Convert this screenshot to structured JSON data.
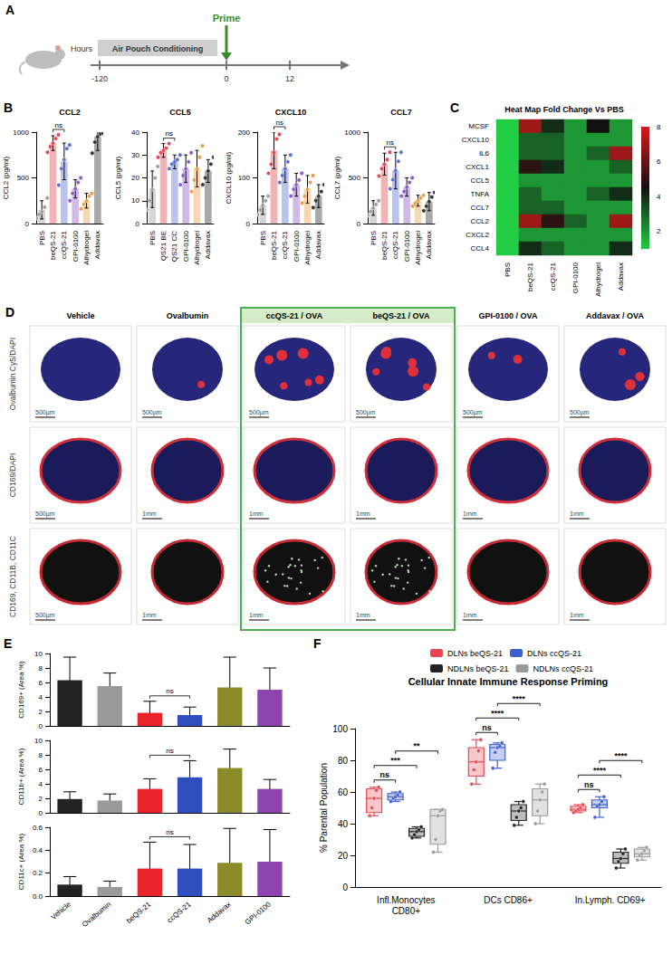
{
  "timeline": {
    "panel": "A",
    "axis_label": "Hours",
    "phase": "Air Pouch Conditioning",
    "event": "Prime",
    "ticks": [
      -120,
      0,
      12
    ]
  },
  "chart_data": [
    {
      "panel": "B",
      "type": "bar",
      "title": "CCL2",
      "y_label": "CCL2 (pg/ml)",
      "categories": [
        "PBS",
        "beQS-21",
        "ccQS-21",
        "GPI-0100",
        "Alhydrogel",
        "Addavax"
      ],
      "values": [
        150,
        880,
        680,
        380,
        250,
        950
      ],
      "errors": [
        100,
        80,
        200,
        100,
        80,
        150
      ],
      "points": [
        [
          60,
          100,
          130,
          180,
          280
        ],
        [
          780,
          840,
          880,
          930,
          970
        ],
        [
          420,
          600,
          700,
          820,
          860
        ],
        [
          250,
          330,
          380,
          450,
          500
        ],
        [
          160,
          210,
          250,
          300,
          330
        ],
        [
          770,
          890,
          950,
          980,
          990
        ]
      ],
      "colors": [
        "#9e9e9e",
        "#e8474f",
        "#5a6fd6",
        "#8e5cc9",
        "#e6a04a",
        "#333333"
      ],
      "ylim": [
        0,
        1000
      ],
      "yticks": [
        0,
        500,
        1000
      ],
      "annotations": [
        {
          "from": 1,
          "to": 2,
          "text": "ns"
        }
      ]
    },
    {
      "type": "bar",
      "title": "CCL5",
      "y_label": "CCL5 (pg/ml)",
      "categories": [
        "PBS",
        "QS21 BE",
        "QS21 CC",
        "GPI-0100",
        "Alhydrogel",
        "Addavax"
      ],
      "values": [
        15,
        32,
        27,
        24,
        24,
        23
      ],
      "errors": [
        8,
        3,
        3,
        6,
        8,
        5
      ],
      "points": [
        [
          6,
          10,
          15,
          20,
          25
        ],
        [
          29,
          31,
          32,
          33,
          35
        ],
        [
          24,
          26,
          27,
          28,
          30
        ],
        [
          17,
          21,
          24,
          27,
          31
        ],
        [
          14,
          19,
          24,
          29,
          34
        ],
        [
          17,
          20,
          23,
          26,
          29
        ]
      ],
      "colors": [
        "#9e9e9e",
        "#e8474f",
        "#5a6fd6",
        "#8e5cc9",
        "#e6a04a",
        "#333333"
      ],
      "ylim": [
        0,
        40
      ],
      "yticks": [
        0,
        10,
        20,
        30,
        40
      ],
      "annotations": [
        {
          "from": 1,
          "to": 2,
          "text": "ns"
        }
      ]
    },
    {
      "type": "bar",
      "title": "CXCL10",
      "y_label": "CXCL10 (pg/ml)",
      "categories": [
        "PBS",
        "beQS-21",
        "ccQS-21",
        "GPI-0100",
        "Alhydrogel",
        "Addavax"
      ],
      "values": [
        40,
        160,
        120,
        85,
        75,
        60
      ],
      "errors": [
        20,
        40,
        30,
        25,
        30,
        25
      ],
      "points": [
        [
          20,
          30,
          40,
          50,
          60
        ],
        [
          110,
          130,
          155,
          185,
          195
        ],
        [
          90,
          105,
          120,
          135,
          150
        ],
        [
          60,
          75,
          85,
          95,
          110
        ],
        [
          45,
          60,
          75,
          90,
          105
        ],
        [
          35,
          50,
          60,
          70,
          85
        ]
      ],
      "colors": [
        "#9e9e9e",
        "#e8474f",
        "#5a6fd6",
        "#8e5cc9",
        "#e6a04a",
        "#333333"
      ],
      "ylim": [
        0,
        200
      ],
      "yticks": [
        0,
        100,
        200
      ],
      "annotations": [
        {
          "from": 1,
          "to": 2,
          "text": "ns"
        }
      ]
    },
    {
      "type": "bar",
      "title": "CCL7",
      "y_label": "CCL7 (pg/ml)",
      "categories": [
        "PBS",
        "beQS-21",
        "ccQS-21",
        "GPI-0100",
        "Alhydrogel",
        "Addavax"
      ],
      "values": [
        170,
        650,
        580,
        400,
        250,
        240
      ],
      "errors": [
        80,
        120,
        200,
        100,
        60,
        100
      ],
      "points": [
        [
          90,
          130,
          170,
          210,
          250
        ],
        [
          520,
          600,
          650,
          700,
          780
        ],
        [
          380,
          480,
          580,
          680,
          780
        ],
        [
          300,
          350,
          400,
          450,
          500
        ],
        [
          190,
          220,
          250,
          280,
          310
        ],
        [
          140,
          190,
          240,
          290,
          340
        ]
      ],
      "colors": [
        "#9e9e9e",
        "#e8474f",
        "#5a6fd6",
        "#8e5cc9",
        "#e6a04a",
        "#333333"
      ],
      "ylim": [
        0,
        1000
      ],
      "yticks": [
        0,
        500,
        1000
      ],
      "annotations": [
        {
          "from": 1,
          "to": 2,
          "text": "ns"
        }
      ]
    },
    {
      "panel": "C",
      "type": "heatmap",
      "title": "Heat Map Fold Change Vs PBS",
      "x_categories": [
        "PBS",
        "beQS-21",
        "ccQS-21",
        "GPI-0100",
        "Alhydrogel",
        "Addavax"
      ],
      "y_categories": [
        "MCSF",
        "CXCL10",
        "IL6",
        "CXCL1",
        "CCL5",
        "TNFA",
        "CCL7",
        "CCL2",
        "CXCL2",
        "CCL4"
      ],
      "cells": [
        [
          1,
          7,
          4,
          2,
          4.5,
          2
        ],
        [
          1,
          3,
          3,
          2,
          2,
          2
        ],
        [
          1,
          3,
          3,
          2,
          3,
          7
        ],
        [
          1,
          5,
          4,
          2,
          2,
          3
        ],
        [
          1,
          2,
          2,
          2,
          2,
          2
        ],
        [
          1,
          3,
          2,
          2,
          3,
          4
        ],
        [
          1,
          3,
          3,
          2,
          2,
          2
        ],
        [
          1,
          7,
          5,
          3,
          2,
          7
        ],
        [
          1,
          2,
          2,
          2,
          2,
          2
        ],
        [
          1,
          4,
          3,
          2,
          2,
          4
        ]
      ],
      "colorbar": {
        "range": [
          1,
          8
        ],
        "ticks": [
          2,
          4,
          6,
          8
        ],
        "colors": [
          "#22cc44",
          "#111111",
          "#d7191c"
        ]
      }
    },
    {
      "panel": "E",
      "type": "bar",
      "y_label": "CD169+ (Area %)",
      "categories": [
        "Vehicle",
        "Ovalbumin",
        "beQS-21",
        "ccQS-21",
        "Addavax",
        "GPI-0100"
      ],
      "values": [
        6.3,
        5.5,
        1.8,
        1.5,
        5.3,
        5.0
      ],
      "errors": [
        3.2,
        1.8,
        1.6,
        1.1,
        4.2,
        3.0
      ],
      "colors": [
        "#222222",
        "#9a9a9a",
        "#e8242b",
        "#2f4fbf",
        "#8b8b2a",
        "#8e44ad"
      ],
      "ylim": [
        0,
        10
      ],
      "yticks": [
        0,
        2,
        4,
        6,
        8,
        10
      ],
      "tick_labels": "y",
      "annotations": [
        {
          "from": 2,
          "to": 3,
          "text": "ns"
        }
      ]
    },
    {
      "type": "bar",
      "y_label": "CD11b+ (Area %)",
      "categories": [
        "Vehicle",
        "Ovalbumin",
        "beQS-21",
        "ccQS-21",
        "Addavax",
        "GPI-0100"
      ],
      "values": [
        1.9,
        1.7,
        3.3,
        4.9,
        6.2,
        3.3
      ],
      "errors": [
        1.0,
        0.9,
        1.4,
        2.3,
        2.6,
        1.3
      ],
      "colors": [
        "#222222",
        "#9a9a9a",
        "#e8242b",
        "#2f4fbf",
        "#8b8b2a",
        "#8e44ad"
      ],
      "ylim": [
        0,
        10
      ],
      "yticks": [
        0,
        2,
        4,
        6,
        8,
        10
      ],
      "tick_labels": "y",
      "annotations": [
        {
          "from": 2,
          "to": 3,
          "text": "ns"
        }
      ]
    },
    {
      "type": "bar",
      "y_label": "CD11c+ (Area %)",
      "categories": [
        "Vehicle",
        "Ovalbumin",
        "beQS-21",
        "ccQS-21",
        "Addavax",
        "GPI-0100"
      ],
      "values": [
        0.1,
        0.08,
        0.24,
        0.24,
        0.29,
        0.3
      ],
      "errors": [
        0.07,
        0.05,
        0.23,
        0.21,
        0.3,
        0.28
      ],
      "colors": [
        "#222222",
        "#9a9a9a",
        "#e8242b",
        "#2f4fbf",
        "#8b8b2a",
        "#8e44ad"
      ],
      "ylim": [
        0,
        0.6
      ],
      "yticks": [
        {
          "value": 0,
          "label": "0.0"
        },
        0.2,
        0.4,
        0.6
      ],
      "annotations": [
        {
          "from": 2,
          "to": 3,
          "text": "ns"
        }
      ]
    },
    {
      "panel": "F",
      "type": "box",
      "title": "Cellular Innate Immune Response Priming",
      "y_label": "% Parental Population",
      "categories": [
        "Infl.Monocytes CD80+",
        "DCs CD86+",
        "In.Lymph. CD69+"
      ],
      "series": [
        {
          "name": "DLNs beQS-21",
          "color": "#e8474f",
          "values": [
            [
              45,
              47,
              56,
              62,
              63
            ],
            [
              65,
              70,
              79,
              88,
              93
            ],
            [
              47,
              48,
              49,
              51,
              52
            ]
          ],
          "points": [
            [
              45,
              50,
              56,
              61,
              63
            ],
            [
              65,
              74,
              79,
              86,
              93
            ],
            [
              47,
              48,
              49,
              50,
              52
            ]
          ]
        },
        {
          "name": "DLNs ccQS-21",
          "color": "#3f5fd0",
          "values": [
            [
              54,
              55,
              57,
              59,
              60
            ],
            [
              75,
              80,
              88,
              90,
              91
            ],
            [
              44,
              50,
              52,
              55,
              57
            ]
          ],
          "points": [
            [
              54,
              56,
              57,
              58,
              60
            ],
            [
              75,
              85,
              88,
              89,
              91
            ],
            [
              44,
              51,
              52,
              54,
              57
            ]
          ]
        },
        {
          "name": "NDLNs beQS-21",
          "color": "#222222",
          "values": [
            [
              31,
              32,
              35,
              37,
              38
            ],
            [
              39,
              42,
              48,
              52,
              54
            ],
            [
              12,
              15,
              18,
              22,
              24
            ]
          ],
          "points": [
            [
              31,
              33,
              35,
              36,
              38
            ],
            [
              39,
              44,
              48,
              50,
              54
            ],
            [
              12,
              16,
              18,
              21,
              24
            ]
          ]
        },
        {
          "name": "NDLNs ccQS-21",
          "color": "#9a9a9a",
          "values": [
            [
              22,
              27,
              45,
              49,
              49
            ],
            [
              40,
              45,
              55,
              62,
              65
            ],
            [
              17,
              19,
              21,
              24,
              25
            ]
          ],
          "points": [
            [
              22,
              30,
              45,
              48,
              49
            ],
            [
              40,
              48,
              55,
              60,
              65
            ],
            [
              17,
              20,
              21,
              23,
              25
            ]
          ]
        }
      ],
      "ylim": [
        0,
        100
      ],
      "yticks": [
        0,
        20,
        40,
        60,
        80,
        100
      ],
      "legend": "top",
      "annotations": [
        {
          "category": 0,
          "from": 0,
          "to": 1,
          "text": "ns"
        },
        {
          "category": 0,
          "from": 0,
          "to": 2,
          "text": "***"
        },
        {
          "category": 0,
          "from": 1,
          "to": 3,
          "text": "**"
        },
        {
          "category": 1,
          "from": 0,
          "to": 1,
          "text": "ns"
        },
        {
          "category": 1,
          "from": 0,
          "to": 2,
          "text": "****"
        },
        {
          "category": 1,
          "from": 1,
          "to": 3,
          "text": "****"
        },
        {
          "category": 2,
          "from": 0,
          "to": 1,
          "text": "ns"
        },
        {
          "category": 2,
          "from": 0,
          "to": 2,
          "text": "****"
        },
        {
          "category": 2,
          "from": 1,
          "to": 3,
          "text": "****"
        }
      ]
    }
  ],
  "images": {
    "panel": "D",
    "columns": [
      "Vehicle",
      "Ovalbumin",
      "ccQS-21 / OVA",
      "beQS-21 / OVA",
      "GPI-0100 / OVA",
      "Addavax / OVA"
    ],
    "highlight_columns": [
      2,
      3
    ],
    "rows": [
      {
        "label": "Ovalbumin Cy5/DAPI",
        "scale_bars": [
          "500µm",
          "500µm",
          "500µm",
          "500µm",
          "500µm",
          "500µm"
        ]
      },
      {
        "label": "CD169/DAPI",
        "scale_bars": [
          "500µm",
          "1mm",
          "1mm",
          "1mm",
          "1mm",
          "1mm"
        ]
      },
      {
        "label": "CD169, CD11B, CD11C",
        "scale_bars": [
          "500µm",
          "1mm",
          "1mm",
          "1mm",
          "1mm",
          "1mm"
        ]
      }
    ]
  }
}
